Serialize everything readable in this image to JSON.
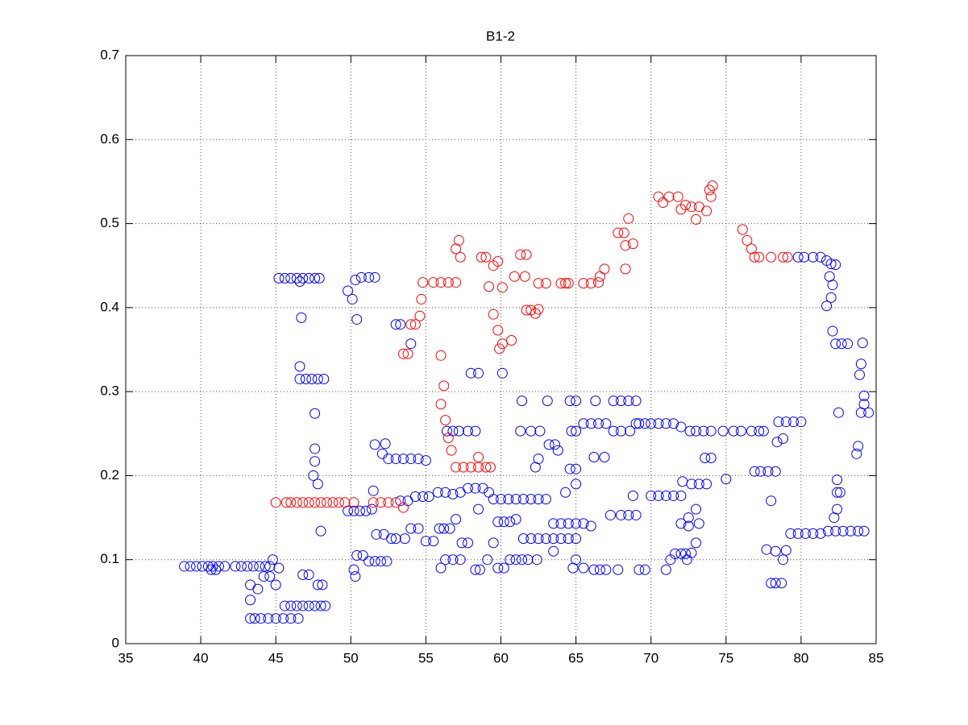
{
  "chart_data": {
    "type": "scatter",
    "title": "B1-2",
    "xlim": [
      35,
      85
    ],
    "xticks": [
      35,
      40,
      45,
      50,
      55,
      60,
      65,
      70,
      75,
      80,
      85
    ],
    "ylim": [
      0,
      0.7
    ],
    "yticks": [
      0,
      0.1,
      0.2,
      0.3,
      0.4,
      0.5,
      0.6,
      0.7
    ],
    "grid": true,
    "series": [
      {
        "color": "#0000ff",
        "x": [
          38.9,
          39.3,
          39.7,
          40.1,
          40.5,
          40.8,
          41.2,
          41.6,
          42.3,
          42.7,
          43.1,
          43.5,
          43.9,
          44.3,
          44.6,
          40.7,
          41.0,
          43.3,
          43.6,
          44.0,
          44.5,
          45.0,
          45.5,
          46.0,
          46.5,
          43.3,
          43.3,
          43.8,
          44.2,
          44.6,
          45.0,
          45.2,
          44.8,
          45.6,
          46.0,
          46.4,
          46.8,
          47.2,
          47.6,
          48.0,
          48.3,
          46.8,
          47.2,
          47.8,
          48.1,
          45.2,
          45.6,
          46.0,
          46.4,
          46.8,
          47.2,
          47.6,
          47.9,
          46.6,
          46.7,
          46.6,
          46.6,
          47.0,
          47.4,
          47.8,
          48.2,
          47.6,
          47.6,
          47.6,
          47.5,
          47.8,
          48.0,
          49.8,
          50.1,
          50.3,
          50.7,
          51.2,
          51.6,
          50.4,
          49.8,
          50.2,
          50.6,
          51.0,
          51.4,
          51.5,
          51.6,
          52.1,
          52.3,
          52.5,
          53.0,
          53.5,
          54.0,
          54.5,
          55.0,
          50.2,
          50.3,
          50.4,
          50.8,
          51.2,
          51.6,
          52.0,
          52.4,
          51.7,
          52.2,
          52.7,
          53.0,
          53.6,
          54.0,
          54.5,
          55.0,
          55.5,
          56.0,
          56.3,
          56.8,
          57.3,
          53.0,
          53.3,
          54.0,
          53.3,
          53.8,
          54.3,
          54.8,
          55.2,
          55.8,
          56.3,
          56.8,
          57.3,
          57.8,
          58.3,
          58.8,
          59.2,
          56.4,
          56.8,
          57.2,
          57.8,
          58.3,
          58.0,
          58.5,
          60.1,
          55.9,
          56.2,
          56.6,
          57.0,
          57.4,
          57.8,
          58.3,
          58.6,
          59.1,
          59.5,
          59.8,
          60.2,
          60.6,
          61.0,
          59.8,
          60.2,
          60.6,
          61.0,
          61.4,
          61.8,
          58.5,
          59.5,
          60.0,
          60.5,
          61.0,
          61.5,
          62.0,
          62.5,
          63.0,
          61.4,
          61.3,
          62.0,
          62.6,
          63.1,
          64.6,
          65.0,
          62.5,
          62.3,
          63.2,
          63.6,
          63.8,
          61.5,
          62.0,
          62.5,
          63.0,
          63.5,
          64.0,
          64.5,
          65.0,
          65.5,
          66.0,
          63.5,
          64.0,
          64.5,
          65.0,
          62.4,
          63.5,
          64.3,
          64.6,
          65.0,
          65.0,
          65.0,
          64.8,
          65.5,
          66.2,
          66.6,
          67.0,
          67.8,
          64.7,
          65.0,
          65.5,
          66.0,
          66.5,
          67.0,
          66.3,
          67.5,
          68.0,
          68.5,
          69.0,
          67.5,
          68.0,
          68.6,
          69.2,
          69.6,
          70.0,
          70.5,
          71.0,
          71.5,
          72.0,
          69.0,
          66.2,
          66.9,
          67.3,
          68.0,
          68.5,
          69.0,
          68.8,
          69.2,
          69.6,
          70.0,
          70.5,
          71.0,
          71.5,
          72.0,
          71.0,
          71.3,
          71.6,
          72.0,
          72.3,
          72.5,
          72.0,
          72.5,
          73.0,
          73.2,
          73.0,
          72.7,
          72.4,
          72.1,
          72.7,
          73.2,
          73.7,
          72.6,
          73.0,
          73.5,
          74.0,
          73.6,
          74.0,
          75.0,
          74.8,
          75.5,
          76.0,
          76.7,
          77.2,
          77.5,
          76.9,
          77.3,
          77.8,
          78.3,
          78.0,
          78.0,
          78.3,
          78.7,
          77.7,
          78.3,
          78.8,
          78.4,
          78.8,
          78.5,
          79.0,
          79.5,
          80.0,
          79.0,
          79.3,
          79.8,
          80.3,
          80.8,
          81.3,
          81.8,
          82.3,
          82.8,
          83.3,
          83.8,
          84.2,
          79.8,
          80.2,
          80.8,
          81.3,
          81.7,
          82.0,
          82.3,
          81.9,
          82.1,
          81.7,
          82.0,
          82.1,
          82.3,
          82.7,
          83.1,
          84.1,
          84.0,
          83.9,
          84.2,
          84.2,
          84.0,
          84.5,
          83.8,
          83.7,
          82.5,
          82.4,
          82.4,
          82.6,
          82.4,
          82.2
        ],
        "values": [
          0.092,
          0.092,
          0.092,
          0.092,
          0.092,
          0.092,
          0.092,
          0.092,
          0.092,
          0.092,
          0.092,
          0.092,
          0.092,
          0.092,
          0.092,
          0.088,
          0.088,
          0.03,
          0.03,
          0.03,
          0.03,
          0.03,
          0.03,
          0.03,
          0.03,
          0.052,
          0.07,
          0.065,
          0.08,
          0.08,
          0.07,
          0.09,
          0.1,
          0.045,
          0.045,
          0.045,
          0.045,
          0.045,
          0.045,
          0.045,
          0.045,
          0.082,
          0.082,
          0.07,
          0.07,
          0.435,
          0.435,
          0.435,
          0.435,
          0.435,
          0.435,
          0.435,
          0.435,
          0.431,
          0.388,
          0.33,
          0.315,
          0.315,
          0.315,
          0.315,
          0.315,
          0.274,
          0.232,
          0.217,
          0.2,
          0.19,
          0.134,
          0.42,
          0.41,
          0.433,
          0.436,
          0.436,
          0.436,
          0.386,
          0.158,
          0.158,
          0.158,
          0.158,
          0.16,
          0.182,
          0.237,
          0.226,
          0.238,
          0.22,
          0.22,
          0.22,
          0.22,
          0.22,
          0.218,
          0.088,
          0.08,
          0.105,
          0.105,
          0.098,
          0.098,
          0.098,
          0.098,
          0.13,
          0.13,
          0.125,
          0.125,
          0.125,
          0.137,
          0.137,
          0.122,
          0.122,
          0.09,
          0.1,
          0.1,
          0.1,
          0.38,
          0.38,
          0.357,
          0.17,
          0.17,
          0.175,
          0.175,
          0.175,
          0.18,
          0.18,
          0.178,
          0.18,
          0.185,
          0.185,
          0.185,
          0.18,
          0.253,
          0.253,
          0.253,
          0.253,
          0.253,
          0.322,
          0.322,
          0.322,
          0.137,
          0.137,
          0.137,
          0.148,
          0.12,
          0.12,
          0.088,
          0.088,
          0.1,
          0.12,
          0.145,
          0.145,
          0.145,
          0.148,
          0.09,
          0.09,
          0.1,
          0.1,
          0.1,
          0.1,
          0.16,
          0.172,
          0.172,
          0.172,
          0.172,
          0.172,
          0.172,
          0.172,
          0.172,
          0.289,
          0.253,
          0.253,
          0.253,
          0.289,
          0.289,
          0.289,
          0.22,
          0.21,
          0.237,
          0.237,
          0.23,
          0.125,
          0.125,
          0.125,
          0.125,
          0.143,
          0.143,
          0.143,
          0.143,
          0.143,
          0.14,
          0.125,
          0.125,
          0.125,
          0.125,
          0.1,
          0.11,
          0.18,
          0.208,
          0.208,
          0.19,
          0.1,
          0.09,
          0.09,
          0.088,
          0.088,
          0.088,
          0.088,
          0.253,
          0.253,
          0.262,
          0.262,
          0.262,
          0.262,
          0.289,
          0.289,
          0.289,
          0.289,
          0.289,
          0.253,
          0.253,
          0.253,
          0.262,
          0.262,
          0.262,
          0.262,
          0.262,
          0.262,
          0.258,
          0.262,
          0.222,
          0.222,
          0.153,
          0.153,
          0.153,
          0.153,
          0.176,
          0.088,
          0.088,
          0.176,
          0.176,
          0.176,
          0.176,
          0.176,
          0.088,
          0.1,
          0.107,
          0.107,
          0.107,
          0.14,
          0.143,
          0.15,
          0.16,
          0.143,
          0.12,
          0.108,
          0.1,
          0.193,
          0.19,
          0.19,
          0.19,
          0.253,
          0.253,
          0.253,
          0.253,
          0.221,
          0.221,
          0.196,
          0.253,
          0.253,
          0.253,
          0.253,
          0.253,
          0.253,
          0.205,
          0.205,
          0.205,
          0.205,
          0.17,
          0.072,
          0.072,
          0.072,
          0.112,
          0.11,
          0.1,
          0.24,
          0.244,
          0.264,
          0.264,
          0.264,
          0.264,
          0.111,
          0.131,
          0.131,
          0.131,
          0.131,
          0.131,
          0.134,
          0.134,
          0.134,
          0.134,
          0.134,
          0.134,
          0.46,
          0.46,
          0.46,
          0.46,
          0.456,
          0.452,
          0.451,
          0.437,
          0.427,
          0.402,
          0.412,
          0.372,
          0.357,
          0.357,
          0.357,
          0.358,
          0.333,
          0.32,
          0.295,
          0.285,
          0.275,
          0.275,
          0.235,
          0.226,
          0.275,
          0.195,
          0.18,
          0.18,
          0.16,
          0.15
        ]
      },
      {
        "color": "#ff0000",
        "x": [
          45.0,
          45.7,
          46.0,
          46.4,
          46.8,
          47.2,
          47.6,
          48.0,
          48.4,
          48.8,
          49.2,
          49.6,
          50.2,
          51.5,
          52.0,
          52.5,
          53.0,
          53.5,
          53.5,
          53.8,
          54.0,
          54.3,
          54.6,
          54.7,
          54.8,
          55.5,
          56.0,
          56.5,
          57.0,
          57.2,
          57.3,
          57.0,
          56.0,
          56.0,
          56.2,
          56.3,
          56.5,
          56.7,
          57.0,
          57.5,
          58.0,
          58.5,
          59.0,
          59.3,
          58.5,
          58.7,
          59.0,
          59.5,
          59.8,
          59.2,
          59.5,
          59.8,
          59.9,
          60.1,
          60.1,
          60.7,
          60.9,
          61.3,
          61.7,
          61.6,
          61.7,
          62.0,
          62.3,
          62.5,
          62.5,
          63.0,
          64.0,
          64.3,
          64.5,
          65.5,
          66.0,
          66.5,
          66.6,
          66.9,
          67.8,
          68.2,
          68.5,
          68.3,
          68.8,
          68.3,
          70.5,
          70.8,
          71.2,
          71.8,
          72.0,
          72.3,
          72.7,
          73.0,
          73.2,
          73.7,
          73.9,
          74.0,
          74.1,
          76.1,
          76.4,
          76.7,
          76.9,
          77.2,
          78.0,
          78.8,
          79.1
        ],
        "values": [
          0.168,
          0.168,
          0.168,
          0.168,
          0.168,
          0.168,
          0.168,
          0.168,
          0.168,
          0.168,
          0.168,
          0.168,
          0.168,
          0.168,
          0.168,
          0.168,
          0.168,
          0.162,
          0.345,
          0.345,
          0.38,
          0.38,
          0.39,
          0.41,
          0.43,
          0.43,
          0.43,
          0.43,
          0.43,
          0.48,
          0.46,
          0.47,
          0.343,
          0.285,
          0.307,
          0.266,
          0.245,
          0.23,
          0.21,
          0.21,
          0.21,
          0.21,
          0.21,
          0.21,
          0.222,
          0.46,
          0.46,
          0.45,
          0.455,
          0.425,
          0.392,
          0.373,
          0.351,
          0.357,
          0.424,
          0.361,
          0.437,
          0.463,
          0.463,
          0.437,
          0.397,
          0.397,
          0.393,
          0.398,
          0.429,
          0.429,
          0.429,
          0.429,
          0.429,
          0.429,
          0.429,
          0.43,
          0.437,
          0.446,
          0.489,
          0.489,
          0.506,
          0.474,
          0.476,
          0.446,
          0.532,
          0.525,
          0.532,
          0.532,
          0.517,
          0.522,
          0.52,
          0.505,
          0.52,
          0.515,
          0.54,
          0.532,
          0.545,
          0.493,
          0.48,
          0.47,
          0.46,
          0.46,
          0.46,
          0.46,
          0.46
        ]
      }
    ]
  }
}
